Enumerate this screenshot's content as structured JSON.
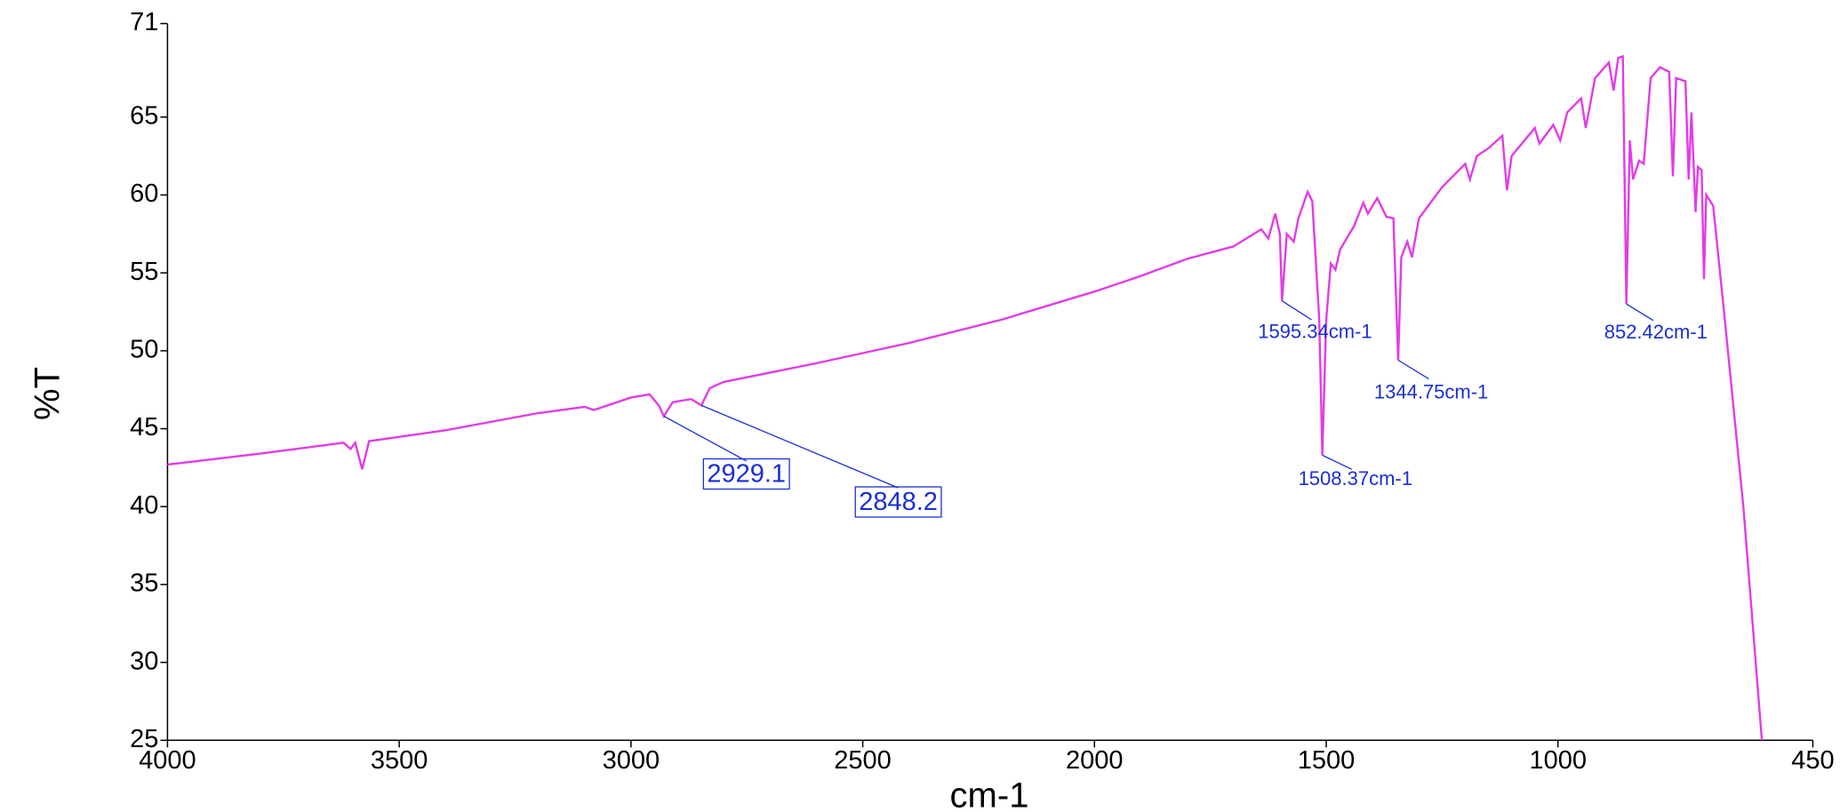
{
  "chart_data": {
    "type": "line",
    "xlabel": "cm-1",
    "ylabel": "%T",
    "color": "#e23ce6",
    "xlim": [
      4000,
      450
    ],
    "ylim": [
      25,
      71
    ],
    "xticks": [
      4000,
      3500,
      3000,
      2500,
      2000,
      1500,
      1000,
      450
    ],
    "yticks": [
      25,
      30,
      35,
      40,
      45,
      50,
      55,
      60,
      65,
      71
    ],
    "x": [
      4000,
      3800,
      3620,
      3605,
      3595,
      3580,
      3565,
      3400,
      3200,
      3100,
      3080,
      3050,
      3000,
      2960,
      2940,
      2929.1,
      2910,
      2870,
      2848.2,
      2830,
      2800,
      2600,
      2400,
      2200,
      2000,
      1900,
      1800,
      1700,
      1640,
      1625,
      1610,
      1600,
      1595.34,
      1585,
      1570,
      1560,
      1540,
      1530,
      1515,
      1508.37,
      1500,
      1490,
      1480,
      1470,
      1440,
      1420,
      1410,
      1390,
      1370,
      1355,
      1344.75,
      1338,
      1325,
      1315,
      1300,
      1250,
      1200,
      1190,
      1175,
      1150,
      1120,
      1110,
      1100,
      1050,
      1040,
      1010,
      995,
      980,
      950,
      940,
      920,
      890,
      880,
      870,
      860,
      852.42,
      845,
      838,
      825,
      815,
      800,
      780,
      760,
      752,
      745,
      725,
      718,
      712,
      703,
      698,
      690,
      685,
      680,
      665,
      640,
      600,
      560
    ],
    "values": [
      42.7,
      43.4,
      44.1,
      43.7,
      44.1,
      42.4,
      44.2,
      44.9,
      46.0,
      46.4,
      46.2,
      46.5,
      47.0,
      47.2,
      46.5,
      45.8,
      46.7,
      46.9,
      46.5,
      47.6,
      48.0,
      49.2,
      50.5,
      52.0,
      53.8,
      54.8,
      55.9,
      56.7,
      57.8,
      57.2,
      58.8,
      57.5,
      53.2,
      57.5,
      57.0,
      58.5,
      60.2,
      59.6,
      52.0,
      43.3,
      52.0,
      55.6,
      55.2,
      56.5,
      58.0,
      59.5,
      58.8,
      59.8,
      58.6,
      58.5,
      49.4,
      56.0,
      57.0,
      56.0,
      58.5,
      60.5,
      62.0,
      61.0,
      62.5,
      63.0,
      63.8,
      60.3,
      62.5,
      64.3,
      63.3,
      64.5,
      63.5,
      65.3,
      66.2,
      64.3,
      67.5,
      68.5,
      66.7,
      68.8,
      68.9,
      53.0,
      63.5,
      61.0,
      62.2,
      62.0,
      67.5,
      68.2,
      67.9,
      61.2,
      67.5,
      67.3,
      61.0,
      65.3,
      58.9,
      61.8,
      61.6,
      54.6,
      60.0,
      59.3,
      52.0,
      40.0,
      25.0
    ],
    "annotations": [
      {
        "label": "1595.34cm-1",
        "x": 1595.34,
        "y": 53.2
      },
      {
        "label": "1508.37cm-1",
        "x": 1508.37,
        "y": 43.3
      },
      {
        "label": "1344.75cm-1",
        "x": 1344.75,
        "y": 49.4
      },
      {
        "label": "852.42cm-1",
        "x": 852.42,
        "y": 53.0
      },
      {
        "label": "2929.1",
        "x": 2929.1,
        "y": 45.8,
        "boxed": true
      },
      {
        "label": "2848.2",
        "x": 2848.2,
        "y": 46.5,
        "boxed": true
      }
    ]
  }
}
